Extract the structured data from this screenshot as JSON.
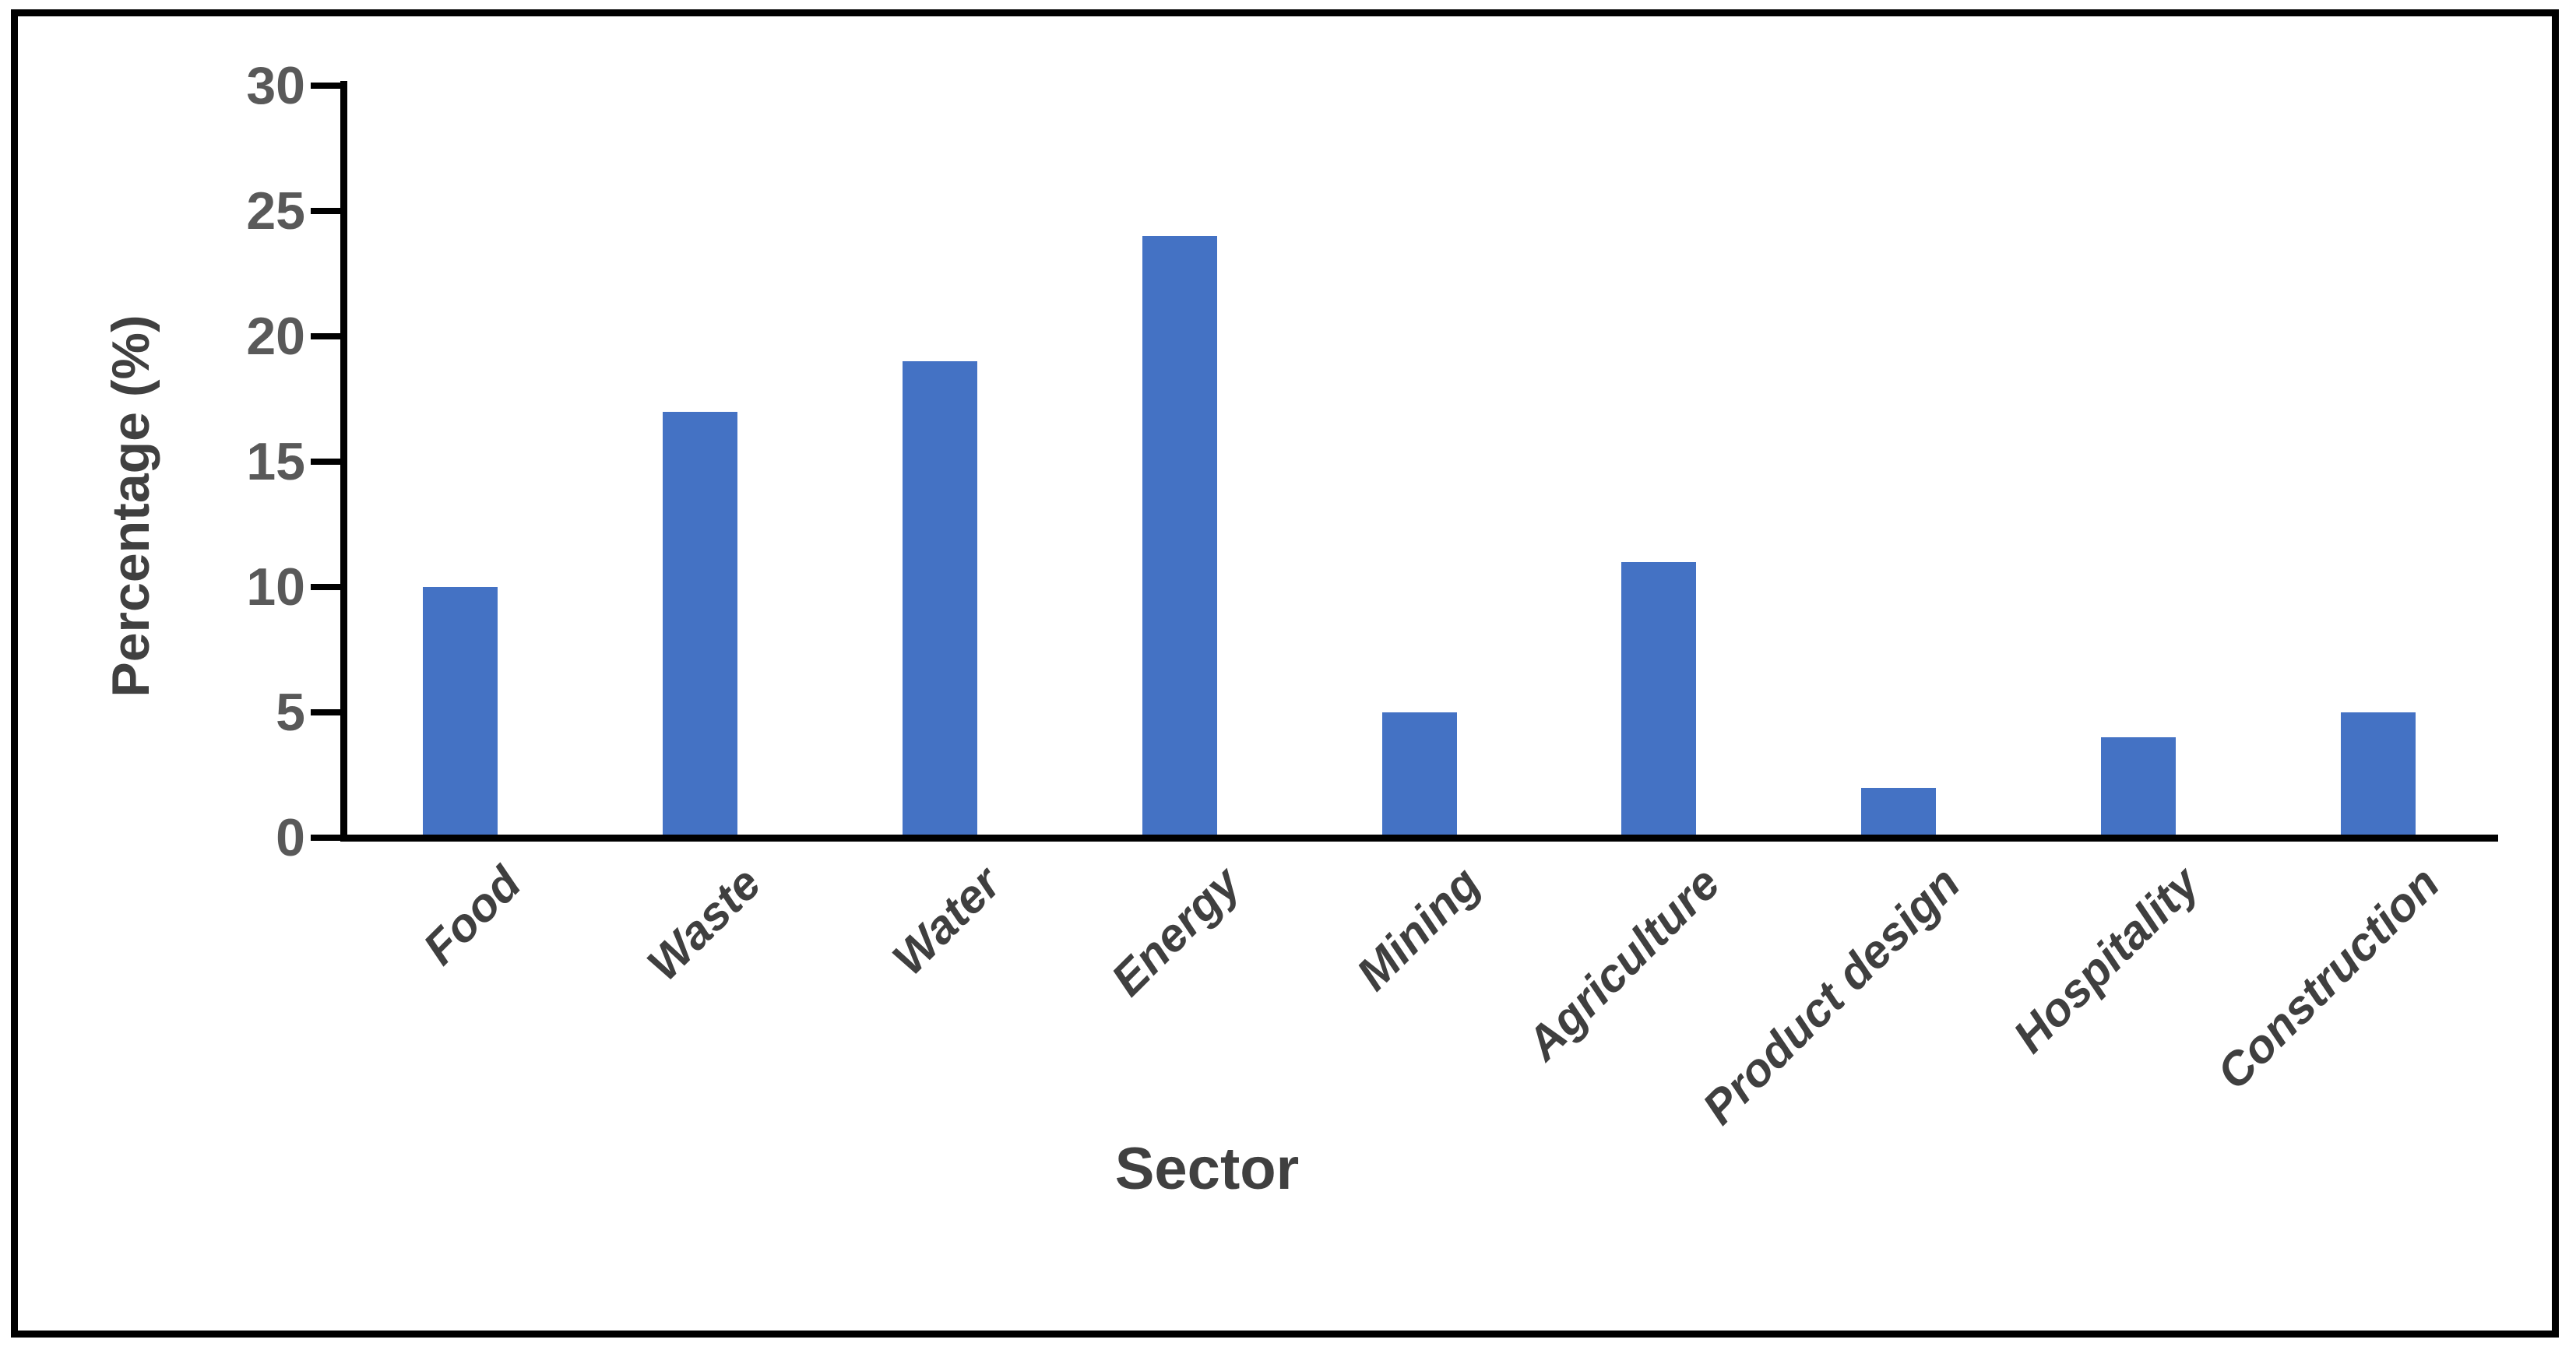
{
  "chart_data": {
    "type": "bar",
    "title": "",
    "categories": [
      "Food",
      "Waste",
      "Water",
      "Energy",
      "Mining",
      "Agriculture",
      "Product design",
      "Hospitality",
      "Construction"
    ],
    "values": [
      10,
      17,
      19,
      24,
      5,
      11,
      2,
      4,
      5
    ],
    "xlabel": "Sector",
    "ylabel": "Percentage (%)",
    "ylim": [
      0,
      30
    ],
    "yticks": [
      0,
      5,
      10,
      15,
      20,
      25,
      30
    ],
    "grid": false,
    "legend": false,
    "bar_color": "#4472C4",
    "axis_color": "#000000",
    "tick_label_color": "#595959",
    "category_label_color": "#3f3f3f",
    "axis_title_color": "#404040",
    "frame_color": "#000000",
    "background_color": "#ffffff"
  }
}
